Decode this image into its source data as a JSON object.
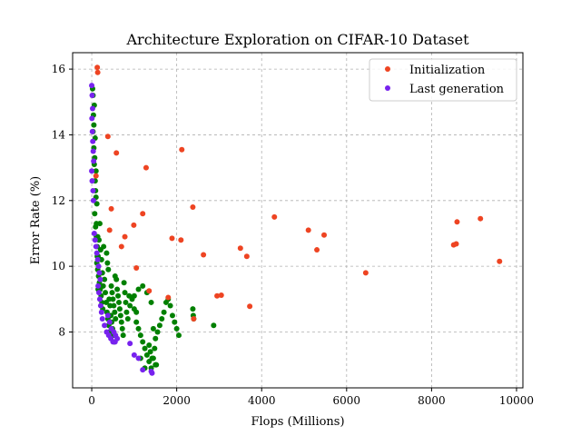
{
  "chart_data": {
    "type": "scatter",
    "title": "Architecture Exploration on CIFAR-10 Dataset",
    "xlabel": "Flops (Millions)",
    "ylabel": "Error Rate (%)",
    "xlim": [
      -450,
      10150
    ],
    "ylim": [
      6.3,
      16.5
    ],
    "xticks": [
      0,
      2000,
      4000,
      6000,
      8000,
      10000
    ],
    "yticks": [
      8,
      10,
      12,
      14,
      16
    ],
    "grid": true,
    "legend_position": "top-right",
    "series": [
      {
        "name": "",
        "color": "#008000",
        "in_legend": false,
        "x": [
          20,
          40,
          30,
          50,
          60,
          80,
          100,
          70,
          90,
          110,
          130,
          150,
          120,
          140,
          160,
          180,
          200,
          170,
          190,
          210,
          230,
          250,
          270,
          220,
          240,
          260,
          280,
          300,
          320,
          340,
          360,
          380,
          400,
          420,
          350,
          370,
          390,
          410,
          430,
          450,
          470,
          490,
          510,
          530,
          550,
          460,
          480,
          500,
          520,
          540,
          560,
          580,
          600,
          620,
          640,
          660,
          680,
          700,
          720,
          740,
          760,
          780,
          800,
          820,
          850,
          880,
          900,
          950,
          1000,
          1050,
          1100,
          1150,
          1200,
          1250,
          1300,
          1350,
          1400,
          1450,
          1500,
          1550,
          1600,
          1650,
          1700,
          1750,
          1800,
          1850,
          1900,
          1950,
          2000,
          2050,
          1100,
          1200,
          1300,
          1400,
          1450,
          1500,
          1350,
          1380,
          1420,
          1480,
          1520,
          1250,
          1150,
          1050,
          1000,
          2380,
          2390,
          2400,
          2870,
          30,
          50,
          70,
          90,
          110,
          130,
          150,
          60,
          80,
          100,
          120,
          140
        ],
        "y": [
          15.4,
          14.6,
          14.1,
          13.6,
          13.1,
          12.6,
          12.1,
          11.6,
          11.2,
          10.9,
          10.6,
          10.3,
          10.1,
          9.9,
          9.7,
          9.5,
          9.3,
          10.8,
          11.3,
          10.5,
          10.2,
          9.8,
          9.4,
          9.1,
          8.9,
          8.7,
          10.6,
          9.6,
          9.2,
          8.9,
          8.6,
          8.4,
          8.2,
          8.0,
          10.4,
          10.1,
          9.9,
          9.0,
          8.8,
          8.5,
          8.3,
          8.1,
          7.9,
          7.7,
          9.7,
          9.4,
          9.2,
          9.0,
          8.8,
          8.6,
          8.4,
          9.6,
          9.3,
          9.1,
          8.9,
          8.7,
          8.5,
          8.3,
          8.1,
          7.9,
          9.5,
          9.2,
          8.9,
          8.6,
          8.4,
          9.1,
          8.8,
          9.0,
          8.7,
          8.3,
          8.1,
          7.9,
          7.7,
          7.5,
          7.3,
          7.1,
          6.9,
          7.2,
          7.0,
          8.0,
          8.2,
          8.4,
          8.6,
          8.9,
          9.0,
          8.8,
          8.5,
          8.3,
          8.1,
          7.9,
          9.3,
          9.4,
          9.2,
          8.9,
          8.1,
          7.8,
          7.6,
          7.4,
          7.2,
          7.5,
          7.0,
          6.9,
          7.2,
          8.6,
          9.1,
          8.7,
          8.5,
          8.4,
          8.2,
          15.2,
          14.3,
          13.3,
          12.3,
          11.3,
          10.3,
          9.3,
          14.9,
          13.9,
          12.9,
          11.9,
          10.9
        ]
      },
      {
        "name": "Initialization",
        "color": "#ee4422",
        "in_legend": true,
        "x": [
          130,
          140,
          100,
          380,
          580,
          1280,
          2120,
          460,
          1200,
          990,
          420,
          2380,
          780,
          700,
          1890,
          2100,
          2630,
          4300,
          5100,
          5300,
          5470,
          3500,
          3650,
          2950,
          3050,
          3720,
          2400,
          1800,
          1350,
          1050,
          6450,
          8520,
          8580,
          8600,
          9150,
          9600
        ],
        "y": [
          16.05,
          15.9,
          12.75,
          13.95,
          13.45,
          13.0,
          13.55,
          11.75,
          11.6,
          11.25,
          11.1,
          11.8,
          10.9,
          10.6,
          10.85,
          10.8,
          10.35,
          11.5,
          11.1,
          10.5,
          10.95,
          10.55,
          10.3,
          9.1,
          9.12,
          8.78,
          8.4,
          9.05,
          9.25,
          9.95,
          9.8,
          10.65,
          10.68,
          11.35,
          11.45,
          10.15
        ]
      },
      {
        "name": "Last generation",
        "color": "#7722ee",
        "in_legend": true,
        "x": [
          0,
          10,
          20,
          5,
          15,
          25,
          35,
          45,
          0,
          10,
          30,
          40,
          60,
          80,
          100,
          120,
          140,
          160,
          180,
          200,
          150,
          170,
          190,
          210,
          230,
          250,
          300,
          350,
          400,
          450,
          500,
          550,
          380,
          420,
          460,
          520,
          560,
          600,
          1000,
          1100,
          1400,
          1420,
          1200,
          900
        ],
        "y": [
          15.5,
          15.2,
          14.8,
          14.5,
          14.1,
          13.8,
          13.5,
          13.2,
          12.9,
          12.6,
          12.3,
          12.0,
          11.0,
          10.8,
          10.6,
          10.4,
          10.2,
          10.0,
          9.8,
          9.6,
          9.4,
          9.2,
          9.0,
          8.8,
          8.6,
          8.4,
          8.2,
          8.0,
          7.9,
          7.8,
          7.7,
          7.7,
          8.5,
          8.3,
          8.1,
          8.0,
          7.9,
          7.8,
          7.3,
          7.2,
          6.8,
          6.75,
          6.85,
          7.65
        ]
      }
    ]
  }
}
